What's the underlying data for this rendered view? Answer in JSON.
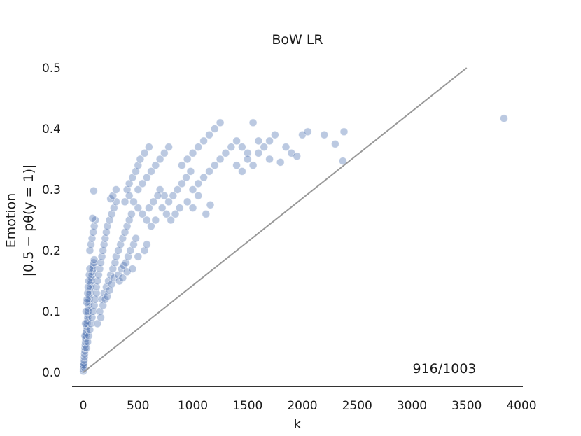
{
  "chart_data": {
    "type": "scatter",
    "title": "BoW LR",
    "xlabel": "k",
    "ylabel_line1": "Emotion",
    "ylabel_line2": "|0.5 − pθ(y = 1)|",
    "xlim": [
      -100,
      4000
    ],
    "ylim": [
      -0.02,
      0.5
    ],
    "xticks": [
      0,
      500,
      1000,
      1500,
      2000,
      2500,
      3000,
      3500,
      4000
    ],
    "yticks": [
      0.0,
      0.1,
      0.2,
      0.3,
      0.4,
      0.5
    ],
    "xtick_labels": [
      "0",
      "500",
      "1000",
      "1500",
      "2000",
      "2500",
      "3000",
      "3500",
      "4000"
    ],
    "ytick_labels": [
      "0.0",
      "0.1",
      "0.2",
      "0.3",
      "0.4",
      "0.5"
    ],
    "grid": false,
    "annotation": "916/1003",
    "reference_line": {
      "x": [
        0,
        3500
      ],
      "y": [
        0.0,
        0.5
      ],
      "color": "#999999"
    },
    "marker_color": "#4c72b0",
    "points": [
      [
        1,
        0.002
      ],
      [
        2,
        0.005
      ],
      [
        3,
        0.008
      ],
      [
        4,
        0.01
      ],
      [
        5,
        0.012
      ],
      [
        6,
        0.015
      ],
      [
        8,
        0.02
      ],
      [
        10,
        0.025
      ],
      [
        12,
        0.03
      ],
      [
        14,
        0.035
      ],
      [
        16,
        0.04
      ],
      [
        18,
        0.045
      ],
      [
        20,
        0.05
      ],
      [
        22,
        0.055
      ],
      [
        25,
        0.06
      ],
      [
        28,
        0.065
      ],
      [
        30,
        0.07
      ],
      [
        32,
        0.075
      ],
      [
        35,
        0.08
      ],
      [
        38,
        0.085
      ],
      [
        40,
        0.09
      ],
      [
        42,
        0.095
      ],
      [
        45,
        0.1
      ],
      [
        48,
        0.105
      ],
      [
        50,
        0.11
      ],
      [
        52,
        0.115
      ],
      [
        55,
        0.12
      ],
      [
        58,
        0.125
      ],
      [
        60,
        0.13
      ],
      [
        63,
        0.135
      ],
      [
        66,
        0.14
      ],
      [
        70,
        0.145
      ],
      [
        73,
        0.15
      ],
      [
        76,
        0.155
      ],
      [
        80,
        0.16
      ],
      [
        84,
        0.165
      ],
      [
        88,
        0.17
      ],
      [
        92,
        0.175
      ],
      [
        96,
        0.18
      ],
      [
        100,
        0.185
      ],
      [
        15,
        0.06
      ],
      [
        20,
        0.08
      ],
      [
        25,
        0.1
      ],
      [
        30,
        0.115
      ],
      [
        35,
        0.12
      ],
      [
        40,
        0.13
      ],
      [
        45,
        0.14
      ],
      [
        50,
        0.15
      ],
      [
        55,
        0.16
      ],
      [
        60,
        0.17
      ],
      [
        30,
        0.04
      ],
      [
        40,
        0.05
      ],
      [
        50,
        0.06
      ],
      [
        60,
        0.07
      ],
      [
        70,
        0.08
      ],
      [
        80,
        0.09
      ],
      [
        90,
        0.1
      ],
      [
        100,
        0.11
      ],
      [
        110,
        0.12
      ],
      [
        120,
        0.13
      ],
      [
        60,
        0.2
      ],
      [
        70,
        0.21
      ],
      [
        80,
        0.22
      ],
      [
        90,
        0.23
      ],
      [
        100,
        0.24
      ],
      [
        110,
        0.25
      ],
      [
        85,
        0.253
      ],
      [
        95,
        0.298
      ],
      [
        120,
        0.14
      ],
      [
        130,
        0.15
      ],
      [
        140,
        0.16
      ],
      [
        150,
        0.17
      ],
      [
        160,
        0.18
      ],
      [
        170,
        0.19
      ],
      [
        180,
        0.2
      ],
      [
        190,
        0.21
      ],
      [
        200,
        0.22
      ],
      [
        210,
        0.23
      ],
      [
        150,
        0.1
      ],
      [
        170,
        0.12
      ],
      [
        190,
        0.13
      ],
      [
        210,
        0.14
      ],
      [
        230,
        0.15
      ],
      [
        250,
        0.16
      ],
      [
        270,
        0.17
      ],
      [
        290,
        0.18
      ],
      [
        130,
        0.08
      ],
      [
        160,
        0.09
      ],
      [
        180,
        0.11
      ],
      [
        200,
        0.12
      ],
      [
        220,
        0.125
      ],
      [
        240,
        0.135
      ],
      [
        260,
        0.145
      ],
      [
        280,
        0.155
      ],
      [
        220,
        0.24
      ],
      [
        240,
        0.25
      ],
      [
        260,
        0.26
      ],
      [
        280,
        0.27
      ],
      [
        300,
        0.28
      ],
      [
        250,
        0.285
      ],
      [
        270,
        0.29
      ],
      [
        300,
        0.3
      ],
      [
        300,
        0.19
      ],
      [
        320,
        0.2
      ],
      [
        340,
        0.21
      ],
      [
        360,
        0.22
      ],
      [
        380,
        0.23
      ],
      [
        400,
        0.24
      ],
      [
        420,
        0.25
      ],
      [
        440,
        0.26
      ],
      [
        320,
        0.16
      ],
      [
        350,
        0.17
      ],
      [
        370,
        0.175
      ],
      [
        390,
        0.18
      ],
      [
        410,
        0.19
      ],
      [
        430,
        0.2
      ],
      [
        460,
        0.21
      ],
      [
        480,
        0.22
      ],
      [
        330,
        0.15
      ],
      [
        360,
        0.155
      ],
      [
        400,
        0.165
      ],
      [
        450,
        0.17
      ],
      [
        500,
        0.19
      ],
      [
        560,
        0.2
      ],
      [
        580,
        0.21
      ],
      [
        400,
        0.3
      ],
      [
        420,
        0.31
      ],
      [
        450,
        0.32
      ],
      [
        480,
        0.33
      ],
      [
        500,
        0.34
      ],
      [
        520,
        0.35
      ],
      [
        560,
        0.36
      ],
      [
        600,
        0.37
      ],
      [
        380,
        0.28
      ],
      [
        420,
        0.29
      ],
      [
        460,
        0.28
      ],
      [
        500,
        0.27
      ],
      [
        540,
        0.26
      ],
      [
        580,
        0.25
      ],
      [
        620,
        0.24
      ],
      [
        660,
        0.25
      ],
      [
        500,
        0.3
      ],
      [
        540,
        0.31
      ],
      [
        580,
        0.32
      ],
      [
        620,
        0.33
      ],
      [
        660,
        0.34
      ],
      [
        700,
        0.35
      ],
      [
        740,
        0.36
      ],
      [
        780,
        0.37
      ],
      [
        700,
        0.3
      ],
      [
        740,
        0.29
      ],
      [
        780,
        0.28
      ],
      [
        820,
        0.29
      ],
      [
        860,
        0.3
      ],
      [
        900,
        0.31
      ],
      [
        940,
        0.32
      ],
      [
        980,
        0.33
      ],
      [
        600,
        0.27
      ],
      [
        640,
        0.28
      ],
      [
        680,
        0.29
      ],
      [
        720,
        0.27
      ],
      [
        760,
        0.26
      ],
      [
        800,
        0.25
      ],
      [
        840,
        0.26
      ],
      [
        880,
        0.27
      ],
      [
        900,
        0.34
      ],
      [
        950,
        0.35
      ],
      [
        1000,
        0.36
      ],
      [
        1050,
        0.37
      ],
      [
        1100,
        0.38
      ],
      [
        1150,
        0.39
      ],
      [
        1200,
        0.4
      ],
      [
        1250,
        0.41
      ],
      [
        1000,
        0.3
      ],
      [
        1050,
        0.31
      ],
      [
        1100,
        0.32
      ],
      [
        1150,
        0.33
      ],
      [
        1200,
        0.34
      ],
      [
        1250,
        0.35
      ],
      [
        1300,
        0.36
      ],
      [
        1350,
        0.37
      ],
      [
        1120,
        0.26
      ],
      [
        1160,
        0.275
      ],
      [
        1000,
        0.27
      ],
      [
        950,
        0.28
      ],
      [
        1050,
        0.29
      ],
      [
        1400,
        0.38
      ],
      [
        1450,
        0.37
      ],
      [
        1500,
        0.36
      ],
      [
        1550,
        0.41
      ],
      [
        1600,
        0.38
      ],
      [
        1650,
        0.37
      ],
      [
        1700,
        0.38
      ],
      [
        1750,
        0.39
      ],
      [
        1400,
        0.34
      ],
      [
        1450,
        0.33
      ],
      [
        1500,
        0.35
      ],
      [
        1550,
        0.34
      ],
      [
        1600,
        0.36
      ],
      [
        1700,
        0.35
      ],
      [
        1800,
        0.345
      ],
      [
        1850,
        0.37
      ],
      [
        1900,
        0.36
      ],
      [
        1950,
        0.355
      ],
      [
        2000,
        0.39
      ],
      [
        2050,
        0.395
      ],
      [
        2200,
        0.39
      ],
      [
        2300,
        0.375
      ],
      [
        2380,
        0.395
      ],
      [
        2370,
        0.347
      ],
      [
        3840,
        0.417
      ]
    ]
  }
}
